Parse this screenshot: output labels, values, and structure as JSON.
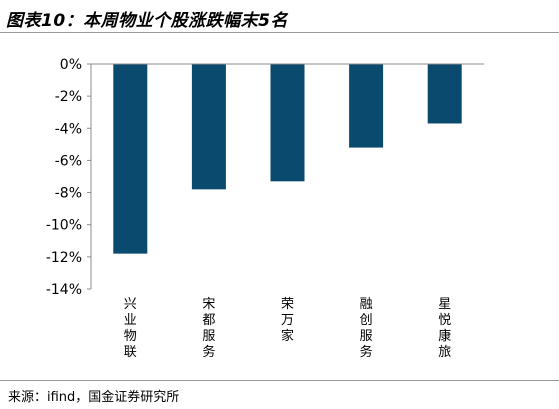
{
  "title": "图表10：本周物业个股涨跌幅末5名",
  "source": "来源：ifind，国金证券研究所",
  "colors": {
    "bar": "#0a4a6e",
    "axis": "#8c8c8c",
    "rule": "#9a9a9a"
  },
  "chart_data": {
    "type": "bar",
    "title": "本周物业个股涨跌幅末5名",
    "categories": [
      "兴业物联",
      "宋都服务",
      "荣万家",
      "融创服务",
      "星悦康旅"
    ],
    "values": [
      -11.8,
      -7.8,
      -7.3,
      -5.2,
      -3.7
    ],
    "unit": "%",
    "ylim": [
      -14,
      0
    ],
    "yticks": [
      0,
      -2,
      -4,
      -6,
      -8,
      -10,
      -12,
      -14
    ],
    "ytick_labels": [
      "0%",
      "-2%",
      "-4%",
      "-6%",
      "-8%",
      "-10%",
      "-12%",
      "-14%"
    ],
    "xlabel": "",
    "ylabel": "",
    "grid": false,
    "legend": "none"
  }
}
